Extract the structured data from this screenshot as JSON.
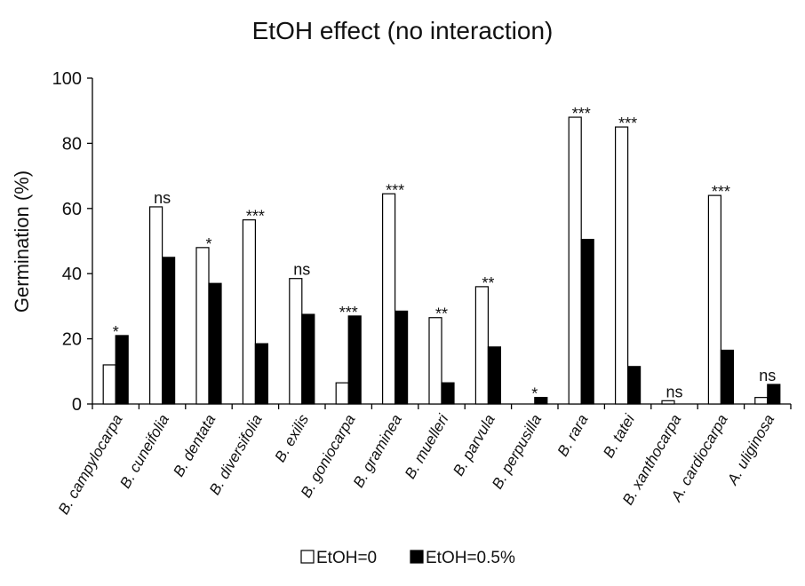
{
  "chart_data": {
    "type": "bar",
    "title": "EtOH effect (no interaction)",
    "xlabel": "",
    "ylabel": "Germination (%)",
    "ylim": [
      0,
      100
    ],
    "yticks": [
      0,
      20,
      40,
      60,
      80,
      100
    ],
    "grid": false,
    "legend_position": "bottom",
    "categories": [
      "B. campylocarpa",
      "B. cuneifolia",
      "B. dentata",
      "B. diversifolia",
      "B. exilis",
      "B. goniocarpa",
      "B. graminea",
      "B. muelleri",
      "B. parvula",
      "B. perpusilla",
      "B. rara",
      "B. tatei",
      "B. xanthocarpa",
      "A. cardiocarpa",
      "A. uliginosa"
    ],
    "series": [
      {
        "name": "EtOH=0",
        "color": "#ffffff",
        "values": [
          12,
          60.5,
          48,
          56.5,
          38.5,
          6.5,
          64.5,
          26.5,
          36,
          0,
          88,
          85,
          1,
          64,
          2
        ]
      },
      {
        "name": "EtOH=0.5%",
        "color": "#000000",
        "values": [
          21,
          45,
          37,
          18.5,
          27.5,
          27,
          28.5,
          6.5,
          17.5,
          2,
          50.5,
          11.5,
          0,
          16.5,
          6
        ]
      }
    ],
    "annotations": [
      "*",
      "ns",
      "*",
      "***",
      "ns",
      "***",
      "***",
      "**",
      "**",
      "*",
      "***",
      "***",
      "ns",
      "***",
      "ns"
    ]
  }
}
